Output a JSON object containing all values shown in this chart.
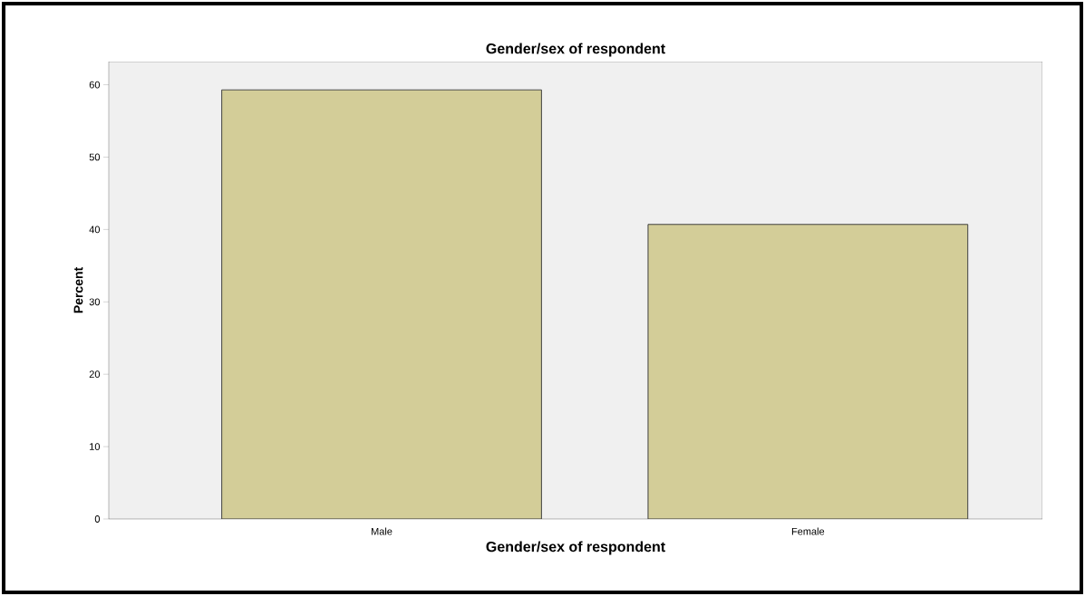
{
  "chart_data": {
    "type": "bar",
    "title": "Gender/sex of respondent",
    "xlabel": "Gender/sex of respondent",
    "ylabel": "Percent",
    "categories": [
      "Male",
      "Female"
    ],
    "values": [
      59.3,
      40.7
    ],
    "color": "#d3cd98",
    "ylim": [
      0,
      63.2
    ],
    "yticks": [
      0,
      10,
      20,
      30,
      40,
      50,
      60
    ]
  }
}
